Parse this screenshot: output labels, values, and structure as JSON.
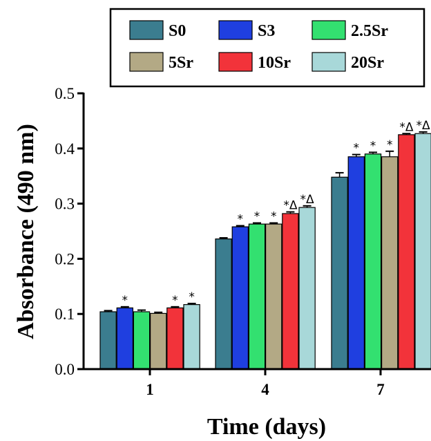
{
  "chart_data": {
    "type": "bar",
    "xlabel": "Time (days)",
    "ylabel": "Absorbance (490 nm)",
    "ylim": [
      0,
      0.5
    ],
    "yticks": [
      "0.0",
      "0.1",
      "0.2",
      "0.3",
      "0.4",
      "0.5"
    ],
    "categories": [
      "1",
      "4",
      "7"
    ],
    "legend_position": "top",
    "series": [
      {
        "name": "S0",
        "color": "#3b7d8f",
        "values": [
          0.104,
          0.236,
          0.348
        ],
        "errors": [
          0.002,
          0.002,
          0.008
        ],
        "annotations": [
          "",
          "",
          ""
        ]
      },
      {
        "name": "S3",
        "color": "#1f3fe0",
        "values": [
          0.111,
          0.258,
          0.385
        ],
        "errors": [
          0.002,
          0.002,
          0.004
        ],
        "annotations": [
          "*",
          "*",
          "*"
        ]
      },
      {
        "name": "2.5Sr",
        "color": "#33e070",
        "values": [
          0.104,
          0.263,
          0.39
        ],
        "errors": [
          0.003,
          0.002,
          0.003
        ],
        "annotations": [
          "",
          "*",
          "*"
        ]
      },
      {
        "name": "5Sr",
        "color": "#b3a985",
        "values": [
          0.101,
          0.263,
          0.385
        ],
        "errors": [
          0.002,
          0.002,
          0.01
        ],
        "annotations": [
          "",
          "*",
          "*"
        ]
      },
      {
        "name": "10Sr",
        "color": "#f2333a",
        "values": [
          0.111,
          0.282,
          0.425
        ],
        "errors": [
          0.002,
          0.003,
          0.002
        ],
        "annotations": [
          "*",
          "*Δ",
          "*Δ"
        ]
      },
      {
        "name": "20Sr",
        "color": "#a8d8d9",
        "values": [
          0.117,
          0.293,
          0.427
        ],
        "errors": [
          0.002,
          0.003,
          0.003
        ],
        "annotations": [
          "*",
          "*Δ",
          "*Δ"
        ]
      }
    ]
  }
}
